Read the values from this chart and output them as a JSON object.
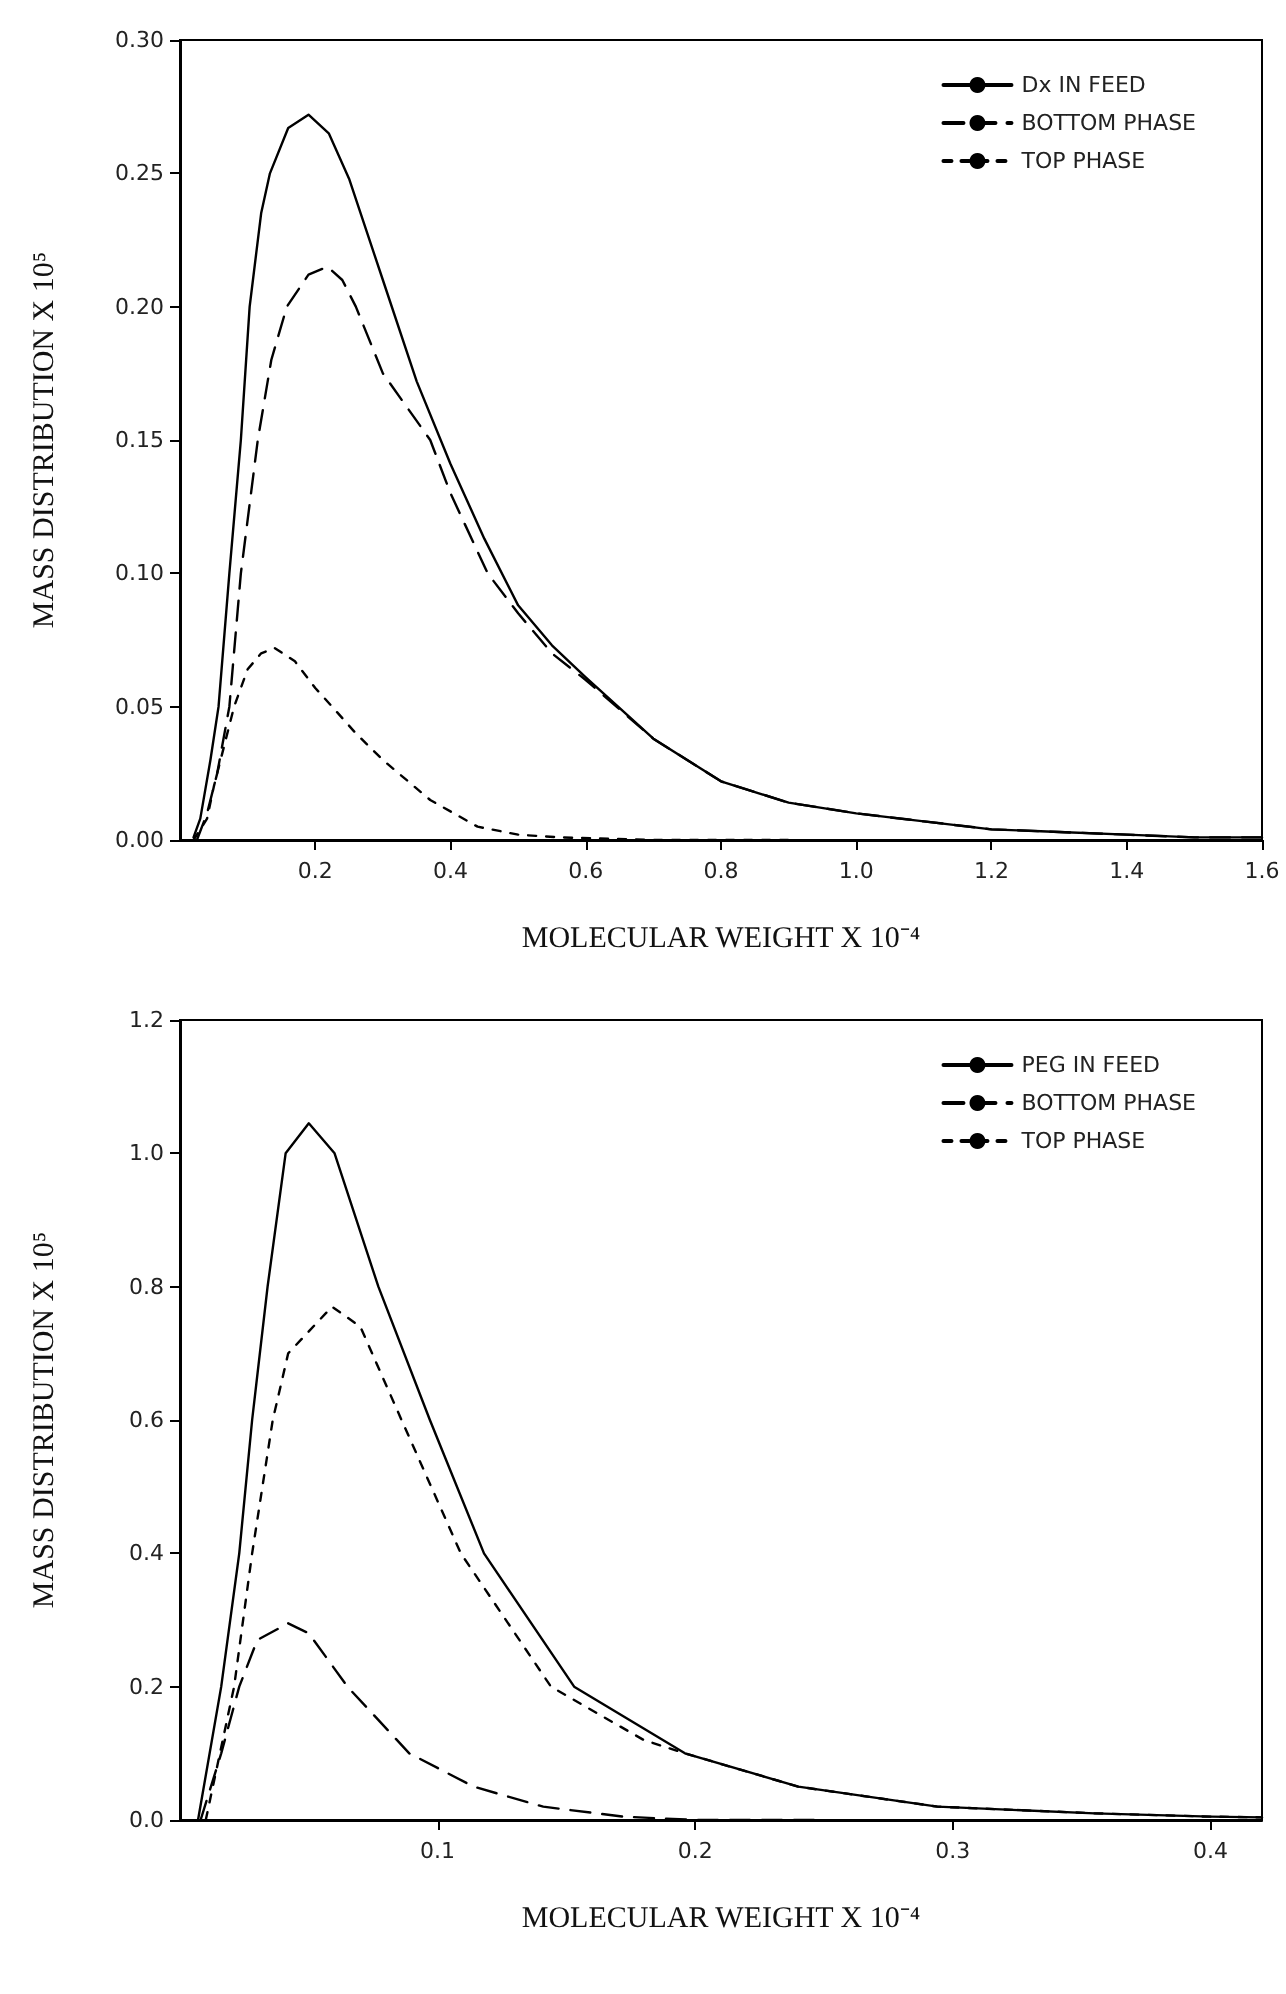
{
  "chart_data": [
    {
      "type": "line",
      "xlabel": "MOLECULAR WEIGHT X 10⁻⁴",
      "ylabel": "MASS DISTRIBUTION X 10⁵",
      "xlim": [
        0,
        1.6
      ],
      "ylim": [
        0,
        0.3
      ],
      "xticks": [
        0.2,
        0.4,
        0.6,
        0.8,
        {
          "value": 1,
          "label": "1.0"
        },
        1.2,
        1.4,
        1.6
      ],
      "yticks": [
        {
          "value": 0,
          "label": "0.00"
        },
        0.05,
        {
          "value": 0.1,
          "label": "0.10"
        },
        0.15,
        {
          "value": 0.2,
          "label": "0.20"
        },
        0.25,
        {
          "value": 0.3,
          "label": "0.30"
        }
      ],
      "grid": false,
      "legend": "top right",
      "marker": "none",
      "series": [
        {
          "name": "Dx IN FEED",
          "color": "#000000",
          "line_style": "solid",
          "x": [
            0.02,
            0.03,
            0.045,
            0.057,
            0.073,
            0.09,
            0.103,
            0.12,
            0.133,
            0.16,
            0.19,
            0.22,
            0.25,
            0.3,
            0.35,
            0.4,
            0.45,
            0.5,
            0.55,
            0.6,
            0.7,
            0.8,
            0.9,
            1.0,
            1.1,
            1.2,
            1.3,
            1.4,
            1.5,
            1.6
          ],
          "values": [
            0.001,
            0.008,
            0.03,
            0.05,
            0.1,
            0.15,
            0.2,
            0.235,
            0.25,
            0.267,
            0.272,
            0.265,
            0.248,
            0.21,
            0.172,
            0.141,
            0.113,
            0.088,
            0.073,
            0.061,
            0.038,
            0.022,
            0.014,
            0.01,
            0.007,
            0.004,
            0.003,
            0.002,
            0.001,
            0.001
          ]
        },
        {
          "name": "BOTTOM PHASE",
          "color": "#000000",
          "line_style": "dashed",
          "x": [
            0.025,
            0.04,
            0.055,
            0.073,
            0.09,
            0.115,
            0.135,
            0.158,
            0.19,
            0.218,
            0.24,
            0.26,
            0.3,
            0.37,
            0.4,
            0.455,
            0.5,
            0.55,
            0.6,
            0.7,
            0.8,
            0.9,
            1.0,
            1.1,
            1.2,
            1.3,
            1.4,
            1.5,
            1.6
          ],
          "values": [
            0,
            0.01,
            0.025,
            0.05,
            0.1,
            0.15,
            0.18,
            0.2,
            0.212,
            0.215,
            0.21,
            0.2,
            0.175,
            0.15,
            0.13,
            0.1,
            0.085,
            0.07,
            0.06,
            0.038,
            0.022,
            0.014,
            0.01,
            0.007,
            0.004,
            0.003,
            0.002,
            0.001,
            0.001
          ]
        },
        {
          "name": "TOP PHASE",
          "color": "#000000",
          "line_style": "dotted",
          "x": [
            0.02,
            0.04,
            0.05,
            0.065,
            0.08,
            0.1,
            0.12,
            0.14,
            0.17,
            0.2,
            0.225,
            0.26,
            0.3,
            0.37,
            0.44,
            0.5,
            0.56,
            0.7,
            0.9
          ],
          "values": [
            0,
            0.008,
            0.02,
            0.035,
            0.05,
            0.064,
            0.07,
            0.072,
            0.067,
            0.057,
            0.05,
            0.04,
            0.03,
            0.015,
            0.005,
            0.002,
            0.001,
            0,
            0
          ]
        }
      ]
    },
    {
      "type": "line",
      "xlabel": "MOLECULAR WEIGHT X 10⁻⁴",
      "ylabel": "MASS DISTRIBUTION X 10⁵",
      "xlim": [
        0,
        0.42
      ],
      "ylim": [
        0,
        1.2
      ],
      "xticks": [
        0.1,
        0.2,
        0.3,
        0.4
      ],
      "yticks": [
        {
          "value": 0,
          "label": "0.0"
        },
        0.2,
        0.4,
        0.6,
        0.8,
        {
          "value": 1,
          "label": "1.0"
        },
        1.2
      ],
      "grid": false,
      "legend": "top right",
      "marker": "none",
      "series": [
        {
          "name": "PEG IN FEED",
          "color": "#000000",
          "line_style": "solid",
          "x": [
            0.007,
            0.016,
            0.023,
            0.028,
            0.034,
            0.041,
            0.05,
            0.06,
            0.077,
            0.097,
            0.118,
            0.153,
            0.196,
            0.24,
            0.294,
            0.355,
            0.4,
            0.42
          ],
          "values": [
            0,
            0.2,
            0.4,
            0.6,
            0.8,
            1.0,
            1.045,
            1.0,
            0.8,
            0.6,
            0.4,
            0.2,
            0.1,
            0.05,
            0.02,
            0.01,
            0.005,
            0.004
          ]
        },
        {
          "name": "BOTTOM PHASE",
          "color": "#000000",
          "line_style": "dashed",
          "x": [
            0.008,
            0.016,
            0.023,
            0.03,
            0.042,
            0.05,
            0.065,
            0.089,
            0.114,
            0.141,
            0.172,
            0.2,
            0.25
          ],
          "values": [
            0,
            0.1,
            0.2,
            0.27,
            0.295,
            0.28,
            0.2,
            0.1,
            0.05,
            0.02,
            0.005,
            0,
            0
          ]
        },
        {
          "name": "TOP PHASE",
          "color": "#000000",
          "line_style": "dotted",
          "x": [
            0.01,
            0.021,
            0.028,
            0.036,
            0.042,
            0.059,
            0.07,
            0.086,
            0.109,
            0.144,
            0.18,
            0.196,
            0.24,
            0.294,
            0.355,
            0.4,
            0.42
          ],
          "values": [
            0,
            0.2,
            0.4,
            0.6,
            0.7,
            0.77,
            0.74,
            0.6,
            0.4,
            0.2,
            0.12,
            0.1,
            0.05,
            0.02,
            0.01,
            0.005,
            0.004
          ]
        }
      ]
    }
  ]
}
